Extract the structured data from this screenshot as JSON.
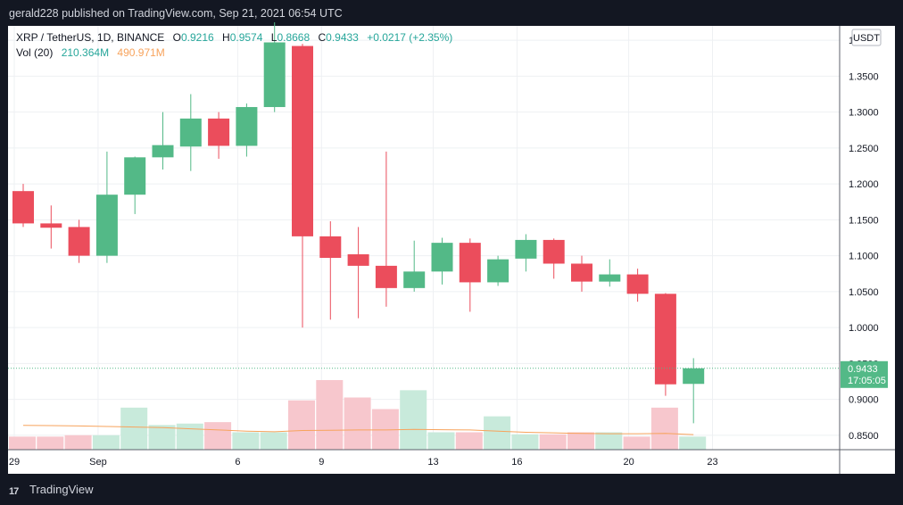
{
  "header": {
    "published": "gerald228 published on TradingView.com, Sep 21, 2021 06:54 UTC"
  },
  "legend": {
    "symbol": "XRP / TetherUS, 1D, BINANCE",
    "o_label": "O",
    "o_value": "0.9216",
    "h_label": "H",
    "h_value": "0.9574",
    "l_label": "L",
    "l_value": "0.8668",
    "c_label": "C",
    "c_value": "0.9433",
    "change": "+0.0217 (+2.35%)",
    "vol_label": "Vol (20)",
    "vol_value": "210.364M",
    "vol_ma_value": "490.971M"
  },
  "currency_button": "USDT",
  "price_tag": {
    "price": "0.9433",
    "countdown": "17:05:05"
  },
  "footer": {
    "brand": "TradingView",
    "logo_mark": "17"
  },
  "colors": {
    "up": "#53b987",
    "down": "#eb4d5c",
    "up_vol": "#c8eadb",
    "down_vol": "#f7c7cd",
    "ma": "#f7a35c"
  },
  "chart_data": {
    "type": "candlestick",
    "title": "XRP / TetherUS, 1D, BINANCE",
    "ylim": [
      0.83,
      1.42
    ],
    "y_ticks": [
      "0.8500",
      "0.9000",
      "0.9500",
      "1.0000",
      "1.0500",
      "1.1000",
      "1.1500",
      "1.2000",
      "1.2500",
      "1.3000",
      "1.3500",
      "1.4000"
    ],
    "x_ticks": [
      {
        "label": "29",
        "index": 0
      },
      {
        "label": "Sep",
        "index": 3
      },
      {
        "label": "6",
        "index": 8
      },
      {
        "label": "9",
        "index": 11
      },
      {
        "label": "13",
        "index": 15
      },
      {
        "label": "16",
        "index": 18
      },
      {
        "label": "20",
        "index": 22
      },
      {
        "label": "23",
        "index": 25
      }
    ],
    "x_start": "Aug 29",
    "candles": [
      {
        "o": 1.19,
        "h": 1.2,
        "l": 1.14,
        "c": 1.145
      },
      {
        "o": 1.145,
        "h": 1.17,
        "l": 1.11,
        "c": 1.139
      },
      {
        "o": 1.14,
        "h": 1.15,
        "l": 1.09,
        "c": 1.1
      },
      {
        "o": 1.1,
        "h": 1.245,
        "l": 1.09,
        "c": 1.185
      },
      {
        "o": 1.185,
        "h": 1.238,
        "l": 1.158,
        "c": 1.237
      },
      {
        "o": 1.237,
        "h": 1.3,
        "l": 1.22,
        "c": 1.254
      },
      {
        "o": 1.252,
        "h": 1.325,
        "l": 1.218,
        "c": 1.291
      },
      {
        "o": 1.291,
        "h": 1.3,
        "l": 1.235,
        "c": 1.253
      },
      {
        "o": 1.253,
        "h": 1.312,
        "l": 1.238,
        "c": 1.307
      },
      {
        "o": 1.307,
        "h": 1.425,
        "l": 1.3,
        "c": 1.397
      },
      {
        "o": 1.392,
        "h": 1.395,
        "l": 1.0,
        "c": 1.127
      },
      {
        "o": 1.127,
        "h": 1.148,
        "l": 1.011,
        "c": 1.097
      },
      {
        "o": 1.102,
        "h": 1.14,
        "l": 1.013,
        "c": 1.086
      },
      {
        "o": 1.086,
        "h": 1.245,
        "l": 1.029,
        "c": 1.055
      },
      {
        "o": 1.055,
        "h": 1.121,
        "l": 1.05,
        "c": 1.078
      },
      {
        "o": 1.078,
        "h": 1.125,
        "l": 1.06,
        "c": 1.118
      },
      {
        "o": 1.118,
        "h": 1.124,
        "l": 1.022,
        "c": 1.063
      },
      {
        "o": 1.063,
        "h": 1.1,
        "l": 1.058,
        "c": 1.095
      },
      {
        "o": 1.096,
        "h": 1.13,
        "l": 1.078,
        "c": 1.122
      },
      {
        "o": 1.122,
        "h": 1.124,
        "l": 1.068,
        "c": 1.089
      },
      {
        "o": 1.089,
        "h": 1.1,
        "l": 1.05,
        "c": 1.064
      },
      {
        "o": 1.064,
        "h": 1.095,
        "l": 1.057,
        "c": 1.074
      },
      {
        "o": 1.074,
        "h": 1.082,
        "l": 1.036,
        "c": 1.047
      },
      {
        "o": 1.047,
        "h": 1.048,
        "l": 0.905,
        "c": 0.921
      },
      {
        "o": 0.9216,
        "h": 0.9574,
        "l": 0.8668,
        "c": 0.9433
      }
    ],
    "volume_scale_max": 4.0,
    "volume": [
      0.45,
      0.45,
      0.5,
      0.5,
      1.45,
      0.85,
      0.9,
      0.95,
      0.6,
      0.6,
      1.7,
      2.4,
      1.8,
      1.4,
      2.05,
      0.6,
      0.6,
      1.15,
      0.53,
      0.53,
      0.6,
      0.6,
      0.45,
      1.45,
      0.45
    ],
    "volume_ma": [
      0.84,
      0.83,
      0.82,
      0.8,
      0.78,
      0.76,
      0.72,
      0.68,
      0.64,
      0.62,
      0.66,
      0.67,
      0.68,
      0.68,
      0.7,
      0.69,
      0.68,
      0.64,
      0.6,
      0.58,
      0.56,
      0.55,
      0.55,
      0.56,
      0.52
    ],
    "last_price": 0.9433
  }
}
